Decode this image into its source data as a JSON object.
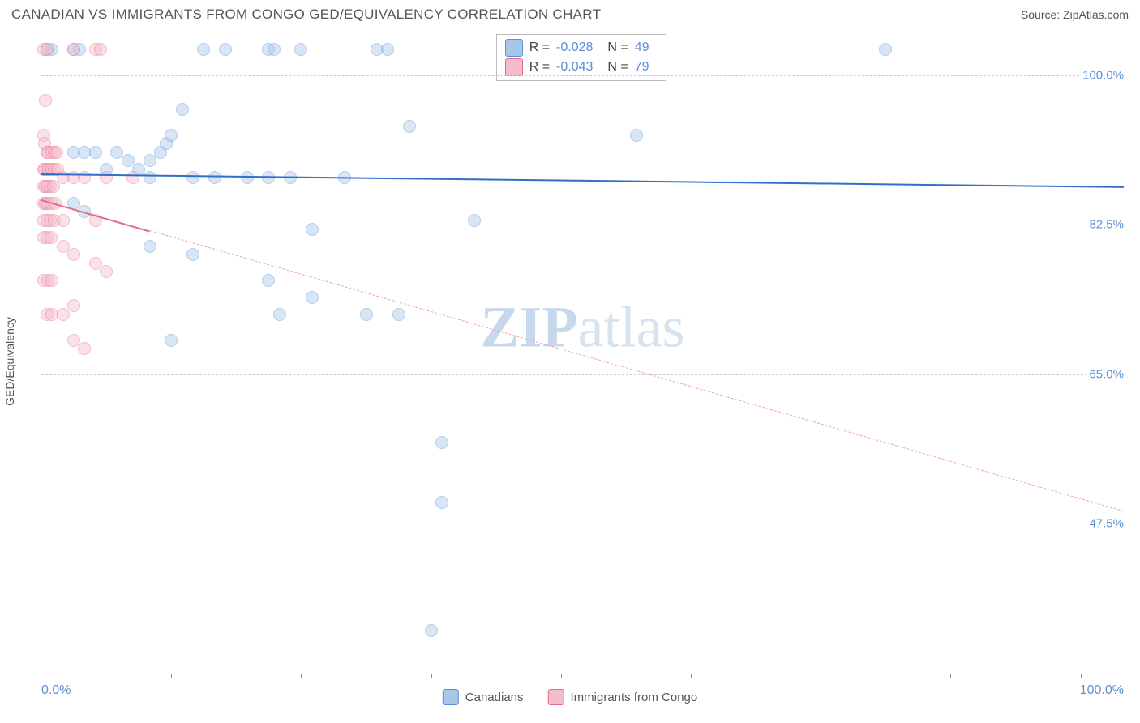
{
  "header": {
    "title": "CANADIAN VS IMMIGRANTS FROM CONGO GED/EQUIVALENCY CORRELATION CHART",
    "source": "Source: ZipAtlas.com"
  },
  "chart": {
    "type": "scatter",
    "ylabel": "GED/Equivalency",
    "x_origin_label": "0.0%",
    "x_max_label": "100.0%",
    "xlim": [
      0,
      100
    ],
    "ylim": [
      30,
      105
    ],
    "ytick_values": [
      47.5,
      65.0,
      82.5,
      100.0
    ],
    "ytick_labels": [
      "47.5%",
      "65.0%",
      "82.5%",
      "100.0%"
    ],
    "xtick_values": [
      12,
      24,
      36,
      48,
      60,
      72,
      84,
      96
    ],
    "grid_color": "#cccccc",
    "axis_color": "#888888",
    "background_color": "#ffffff",
    "point_radius": 8,
    "point_opacity": 0.45,
    "watermark_zip": "ZIP",
    "watermark_atlas": "atlas",
    "series": [
      {
        "name": "Canadians",
        "fill_color": "#a9c6ea",
        "stroke_color": "#5b8fd6",
        "r_value": "-0.028",
        "n_value": "49",
        "trend": {
          "x1": 0,
          "y1": 88.5,
          "x2": 100,
          "y2": 87.0,
          "color": "#2f6fc9",
          "width": 2.5,
          "dash": "solid"
        },
        "points": [
          [
            0.5,
            103
          ],
          [
            1,
            103
          ],
          [
            3,
            103
          ],
          [
            3.5,
            103
          ],
          [
            15,
            103
          ],
          [
            17,
            103
          ],
          [
            21,
            103
          ],
          [
            21.5,
            103
          ],
          [
            24,
            103
          ],
          [
            31,
            103
          ],
          [
            32,
            103
          ],
          [
            78,
            103
          ],
          [
            13,
            96
          ],
          [
            34,
            94
          ],
          [
            55,
            93
          ],
          [
            3,
            91
          ],
          [
            4,
            91
          ],
          [
            5,
            91
          ],
          [
            7,
            91
          ],
          [
            8,
            90
          ],
          [
            10,
            90
          ],
          [
            11,
            91
          ],
          [
            11.5,
            92
          ],
          [
            12,
            93
          ],
          [
            6,
            89
          ],
          [
            9,
            89
          ],
          [
            10,
            88
          ],
          [
            14,
            88
          ],
          [
            16,
            88
          ],
          [
            19,
            88
          ],
          [
            21,
            88
          ],
          [
            23,
            88
          ],
          [
            28,
            88
          ],
          [
            3,
            85
          ],
          [
            4,
            84
          ],
          [
            40,
            83
          ],
          [
            10,
            80
          ],
          [
            14,
            79
          ],
          [
            25,
            82
          ],
          [
            21,
            76
          ],
          [
            25,
            74
          ],
          [
            12,
            69
          ],
          [
            22,
            72
          ],
          [
            30,
            72
          ],
          [
            33,
            72
          ],
          [
            37,
            57
          ],
          [
            37,
            50
          ],
          [
            36,
            35
          ]
        ]
      },
      {
        "name": "Immigrants from Congo",
        "fill_color": "#f5bccb",
        "stroke_color": "#e86a8a",
        "r_value": "-0.043",
        "n_value": "79",
        "trend": {
          "x1": 0,
          "y1": 85.5,
          "x2": 100,
          "y2": 49.0,
          "color": "#e9a3b5",
          "width": 1.2,
          "dash": "dashed",
          "solid_until_x": 10
        },
        "points": [
          [
            0.2,
            103
          ],
          [
            0.5,
            103
          ],
          [
            3,
            103
          ],
          [
            5,
            103
          ],
          [
            5.5,
            103
          ],
          [
            0.4,
            97
          ],
          [
            0.2,
            93
          ],
          [
            0.3,
            92
          ],
          [
            0.5,
            91
          ],
          [
            0.6,
            91
          ],
          [
            1,
            91
          ],
          [
            1.2,
            91
          ],
          [
            1.4,
            91
          ],
          [
            0.2,
            89
          ],
          [
            0.3,
            89
          ],
          [
            0.5,
            89
          ],
          [
            0.7,
            89
          ],
          [
            1,
            89
          ],
          [
            1.2,
            89
          ],
          [
            1.5,
            89
          ],
          [
            0.2,
            87
          ],
          [
            0.4,
            87
          ],
          [
            0.6,
            87
          ],
          [
            0.8,
            87
          ],
          [
            1.1,
            87
          ],
          [
            2,
            88
          ],
          [
            3,
            88
          ],
          [
            4,
            88
          ],
          [
            6,
            88
          ],
          [
            8.5,
            88
          ],
          [
            0.2,
            85
          ],
          [
            0.4,
            85
          ],
          [
            0.6,
            85
          ],
          [
            0.9,
            85
          ],
          [
            1.3,
            85
          ],
          [
            0.2,
            83
          ],
          [
            0.5,
            83
          ],
          [
            0.8,
            83
          ],
          [
            1.2,
            83
          ],
          [
            2,
            83
          ],
          [
            5,
            83
          ],
          [
            0.2,
            81
          ],
          [
            0.5,
            81
          ],
          [
            0.9,
            81
          ],
          [
            2,
            80
          ],
          [
            3,
            79
          ],
          [
            5,
            78
          ],
          [
            6,
            77
          ],
          [
            0.2,
            76
          ],
          [
            0.6,
            76
          ],
          [
            1,
            76
          ],
          [
            3,
            73
          ],
          [
            0.5,
            72
          ],
          [
            1,
            72
          ],
          [
            2,
            72
          ],
          [
            3,
            69
          ],
          [
            4,
            68
          ]
        ]
      }
    ]
  },
  "bottom_legend": {
    "items": [
      {
        "label": "Canadians",
        "fill": "#a9c6ea",
        "stroke": "#5b8fd6"
      },
      {
        "label": "Immigrants from Congo",
        "fill": "#f5bccb",
        "stroke": "#e86a8a"
      }
    ]
  }
}
